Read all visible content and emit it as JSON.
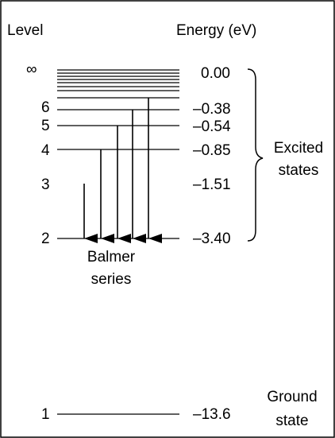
{
  "headers": {
    "level": "Level",
    "energy": "Energy (eV)"
  },
  "levels": [
    {
      "n": "∞",
      "energy": "0.00"
    },
    {
      "n": "6",
      "energy": "–0.38"
    },
    {
      "n": "5",
      "energy": "–0.54"
    },
    {
      "n": "4",
      "energy": "–0.85"
    },
    {
      "n": "3",
      "energy": "–1.51"
    },
    {
      "n": "2",
      "energy": "–3.40"
    },
    {
      "n": "1",
      "energy": "–13.6"
    }
  ],
  "transitions_to_level": "2",
  "transitions_from_levels": [
    "3",
    "4",
    "5",
    "6",
    "∞"
  ],
  "series_label_line1": "Balmer",
  "series_label_line2": "series",
  "excited_label_line1": "Excited",
  "excited_label_line2": "states",
  "ground_label_line1": "Ground",
  "ground_label_line2": "state"
}
